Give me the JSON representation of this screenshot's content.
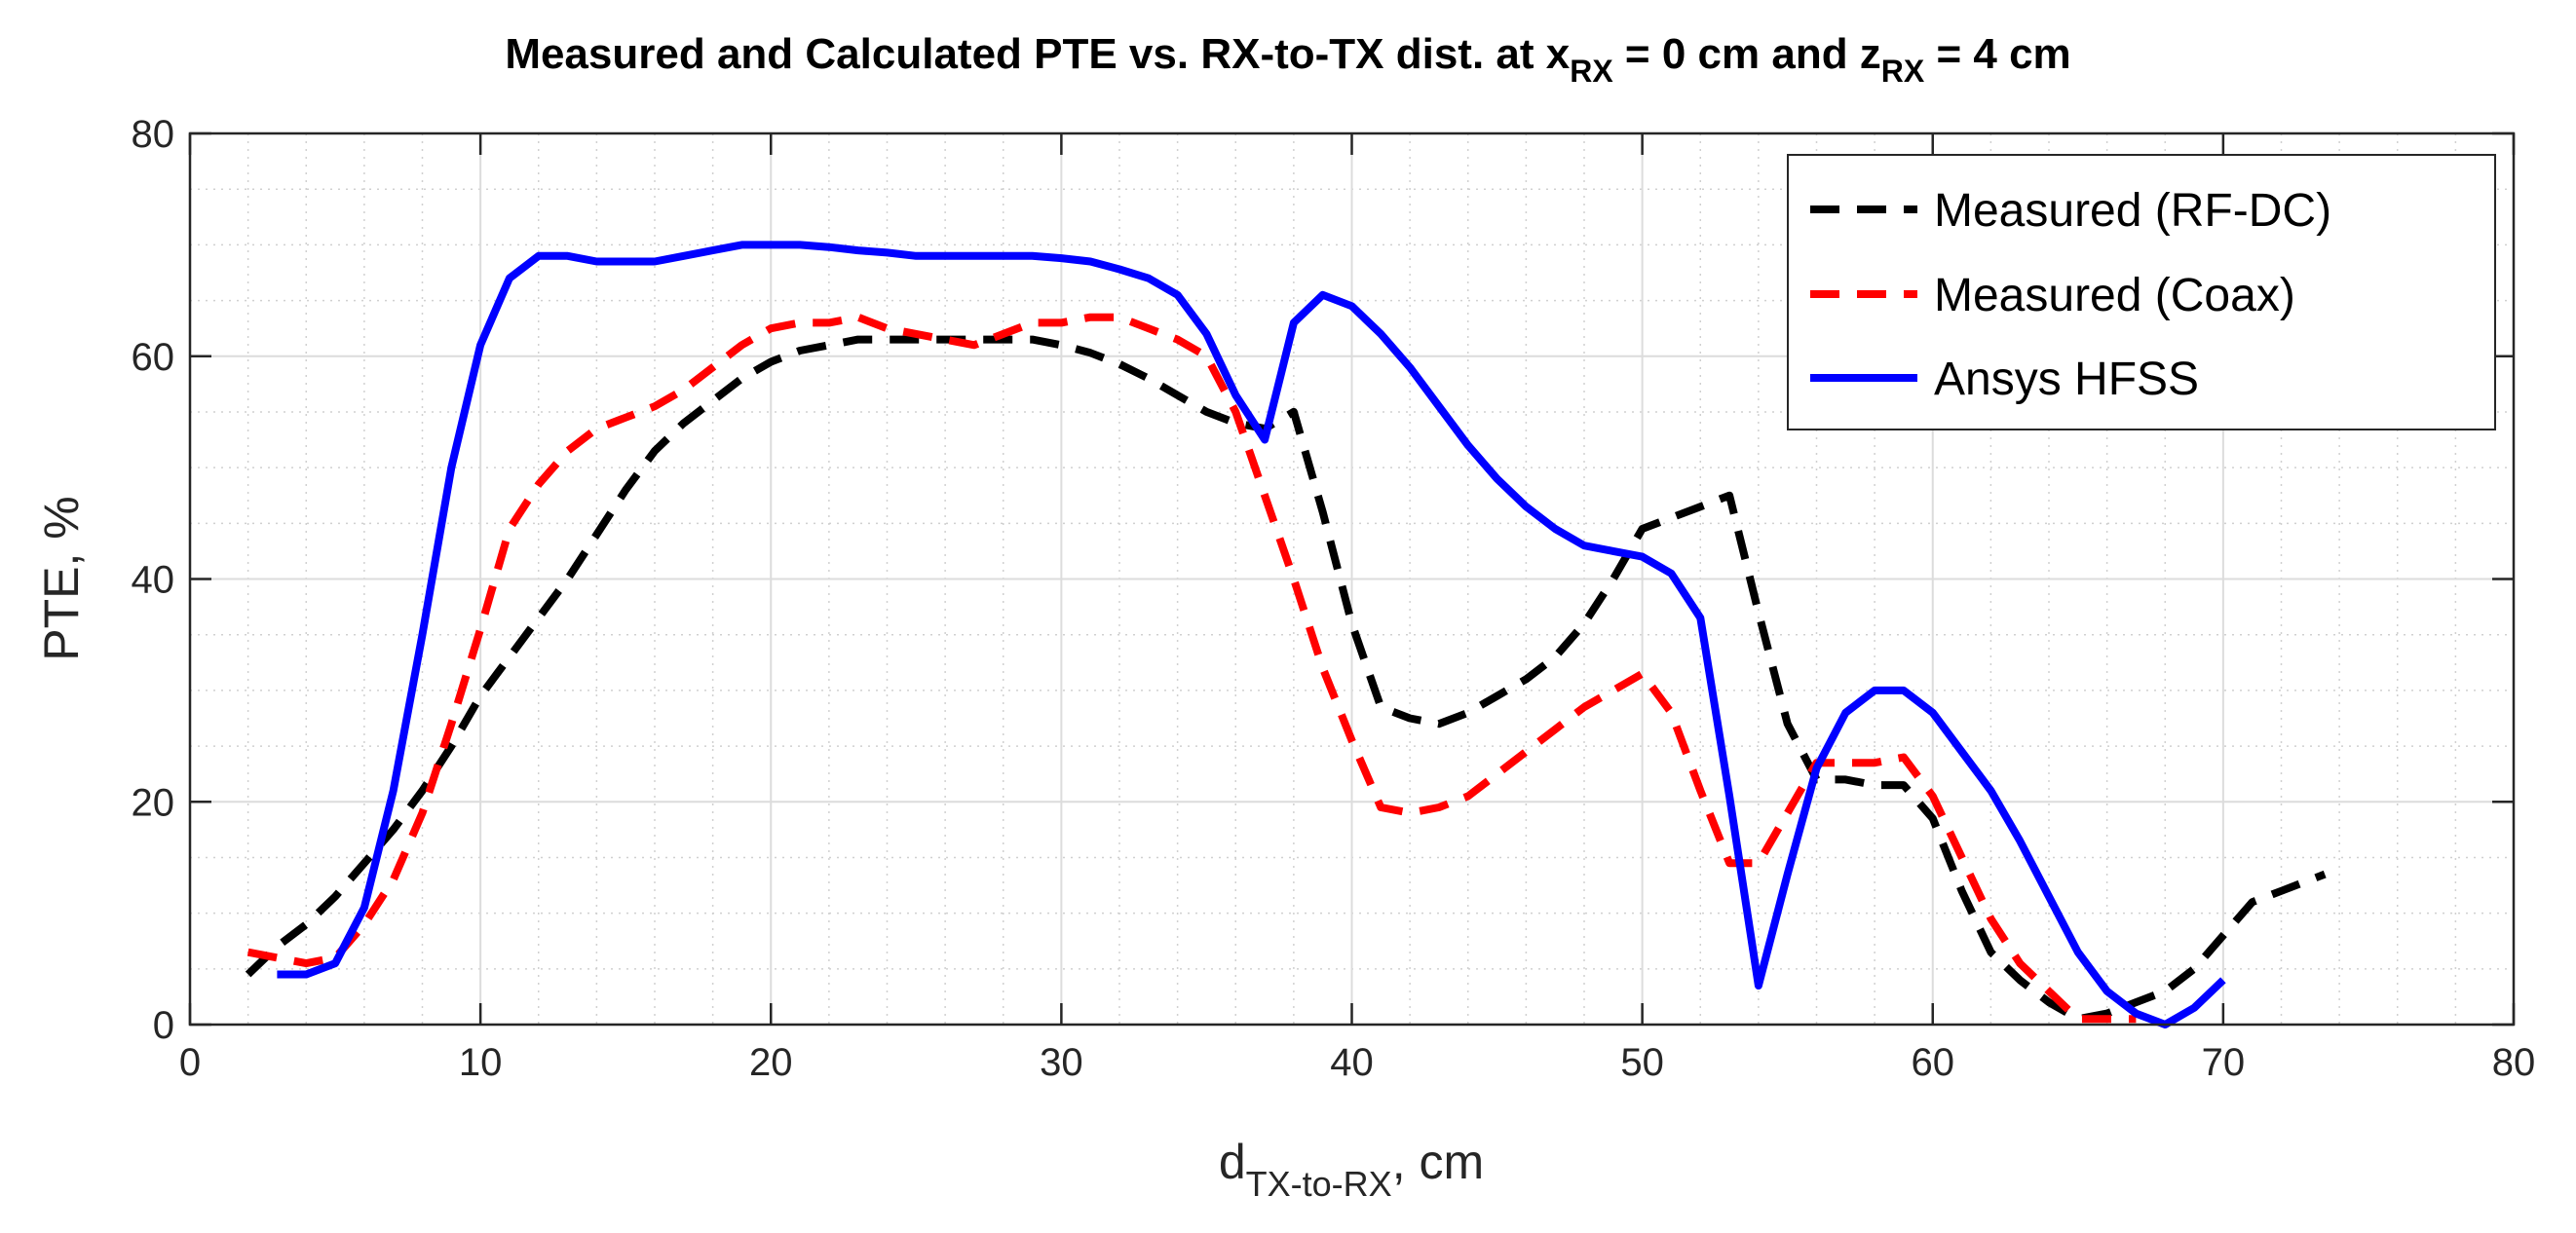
{
  "chart_data": {
    "type": "line",
    "title": {
      "main": "Measured and Calculated PTE vs. RX-to-TX dist. at x",
      "sub1": "RX",
      "mid": " = 0 cm and z",
      "sub2": "RX",
      "end": " = 4 cm"
    },
    "xlabel": {
      "main": "d",
      "sub": "TX-to-RX",
      "end": ", cm"
    },
    "ylabel": "PTE, %",
    "xlim": [
      0,
      80
    ],
    "ylim": [
      0,
      80
    ],
    "xticks": [
      0,
      10,
      20,
      30,
      40,
      50,
      60,
      70,
      80
    ],
    "yticks": [
      0,
      20,
      40,
      60,
      80
    ],
    "xtick_labels": [
      "0",
      "10",
      "20",
      "30",
      "40",
      "50",
      "60",
      "70",
      "80"
    ],
    "ytick_labels": [
      "0",
      "20",
      "40",
      "60",
      "80"
    ],
    "grid": true,
    "minor_grid": true,
    "legend_position": "top-right",
    "series": [
      {
        "name": "Measured (RF-DC)",
        "color": "#000000",
        "style": "dashed",
        "x": [
          2,
          3,
          4,
          5,
          6,
          7,
          8,
          9,
          10,
          11,
          12,
          13,
          14,
          15,
          16,
          17,
          18,
          19,
          20,
          21,
          22,
          23,
          24,
          25,
          26,
          27,
          28,
          29,
          30,
          31,
          32,
          33,
          34,
          35,
          36,
          37,
          38,
          39,
          40,
          41,
          42,
          43,
          44,
          45,
          46,
          47,
          48,
          49,
          50,
          51,
          52,
          53,
          54,
          55,
          56,
          57,
          58,
          59,
          60,
          61,
          62,
          63,
          64,
          65,
          66,
          67,
          68,
          69,
          70,
          71,
          72,
          73.5
        ],
        "y": [
          4.5,
          7,
          9,
          11.5,
          14.5,
          17.5,
          21,
          25,
          29.5,
          33,
          36.5,
          40,
          44,
          48,
          51.5,
          54,
          56,
          58,
          59.5,
          60.5,
          61,
          61.5,
          61.5,
          61.5,
          61.5,
          61.5,
          61.5,
          61.5,
          61,
          60.3,
          59.3,
          58,
          56.5,
          55,
          54,
          53.5,
          55,
          46,
          36,
          28.5,
          27.5,
          27,
          28,
          29.5,
          31,
          33,
          36,
          40,
          44.5,
          45.5,
          46.5,
          47.5,
          37,
          27,
          22,
          22,
          21.5,
          21.5,
          18.5,
          12,
          6.5,
          4,
          2,
          0.5,
          1,
          2,
          3,
          5,
          8,
          11,
          12,
          13.5
        ]
      },
      {
        "name": "Measured (Coax)",
        "color": "#ff0000",
        "style": "dashed",
        "x": [
          2,
          3,
          4,
          5,
          6,
          7,
          8,
          9,
          10,
          11,
          12,
          13,
          14,
          15,
          16,
          17,
          18,
          19,
          20,
          21,
          22,
          23,
          24,
          25,
          26,
          27,
          28,
          29,
          30,
          31,
          32,
          33,
          34,
          35,
          36,
          37,
          38,
          39,
          40,
          41,
          42,
          43,
          44,
          45,
          46,
          47,
          48,
          49,
          50,
          51,
          52,
          53,
          54,
          55,
          56,
          57,
          58,
          59,
          60,
          61,
          62,
          63,
          64,
          65,
          66,
          67
        ],
        "y": [
          6.5,
          6,
          5.5,
          6,
          9,
          13,
          19,
          27,
          35.5,
          44.5,
          48.5,
          51.5,
          53.5,
          54.5,
          55.5,
          57,
          59,
          61,
          62.5,
          63,
          63,
          63.5,
          62.5,
          62,
          61.5,
          61,
          62,
          63,
          63,
          63.5,
          63.5,
          62.5,
          61.5,
          60,
          55,
          47.5,
          40,
          32,
          25.5,
          19.5,
          19,
          19.5,
          20.5,
          22.5,
          24.5,
          26.5,
          28.5,
          30,
          31.5,
          28,
          21,
          14.5,
          14.5,
          19,
          23.5,
          23.5,
          23.5,
          24,
          20.5,
          15,
          9.5,
          5.5,
          3,
          0.5,
          0.5,
          0.5
        ]
      },
      {
        "name": "Ansys HFSS",
        "color": "#0000ff",
        "style": "solid",
        "x": [
          3,
          4,
          5,
          6,
          7,
          8,
          9,
          10,
          11,
          12,
          13,
          14,
          15,
          16,
          17,
          18,
          19,
          20,
          21,
          22,
          23,
          24,
          25,
          26,
          27,
          28,
          29,
          30,
          31,
          32,
          33,
          34,
          35,
          36,
          37,
          38,
          39,
          40,
          41,
          42,
          43,
          44,
          45,
          46,
          47,
          48,
          49,
          50,
          51,
          52,
          53,
          54,
          55,
          56,
          57,
          58,
          59,
          60,
          61,
          62,
          63,
          64,
          65,
          66,
          67,
          68,
          69,
          70
        ],
        "y": [
          4.5,
          4.5,
          5.5,
          10.5,
          21,
          35,
          50,
          61,
          67,
          69,
          69,
          68.5,
          68.5,
          68.5,
          69,
          69.5,
          70,
          70,
          70,
          69.8,
          69.5,
          69.3,
          69,
          69,
          69,
          69,
          69,
          68.8,
          68.5,
          67.8,
          67,
          65.5,
          62,
          56.5,
          52.5,
          63,
          65.5,
          64.5,
          62,
          59,
          55.5,
          52,
          49,
          46.5,
          44.5,
          43,
          42.5,
          42,
          40.5,
          36.5,
          20.5,
          3.5,
          13.5,
          23,
          28,
          30,
          30,
          28,
          24.5,
          21,
          16.5,
          11.5,
          6.5,
          3,
          1,
          0,
          1.5,
          4
        ]
      }
    ]
  }
}
